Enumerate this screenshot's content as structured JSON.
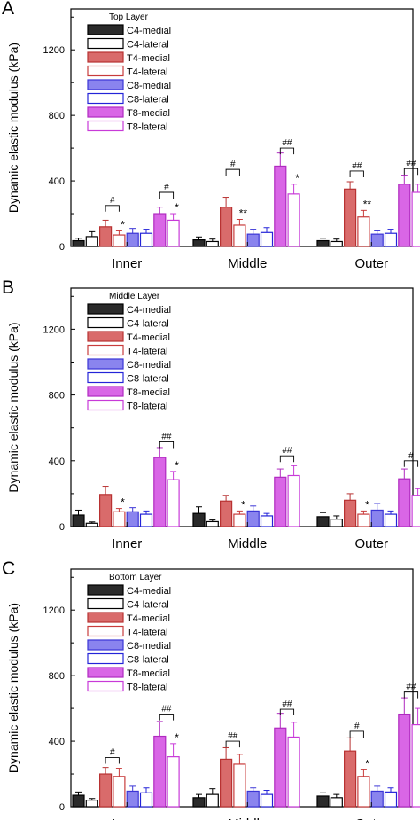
{
  "colors": {
    "C4-medial": {
      "fill": "#2a2a2a",
      "stroke": "#000000"
    },
    "C4-lateral": {
      "fill": "#ffffff",
      "stroke": "#000000"
    },
    "T4-medial": {
      "fill": "#d96b6b",
      "stroke": "#b83232"
    },
    "T4-lateral": {
      "fill": "#ffffff",
      "stroke": "#c83c3c"
    },
    "C8-medial": {
      "fill": "#8a84ee",
      "stroke": "#3b35d6"
    },
    "C8-lateral": {
      "fill": "#ffffff",
      "stroke": "#2424d8"
    },
    "T8-medial": {
      "fill": "#d966e6",
      "stroke": "#b02ac0"
    },
    "T8-lateral": {
      "fill": "#ffffff",
      "stroke": "#c83ad8"
    }
  },
  "chart_data": [
    {
      "panel": "A",
      "type": "bar",
      "legend_title": "Top Layer",
      "legend_placement": "top-left",
      "ylabel": "Dynamic elastic modulus (kPa)",
      "ylim": [
        0,
        1450
      ],
      "yticks": [
        0,
        400,
        800,
        1200
      ],
      "categories": [
        "Inner",
        "Middle",
        "Outer"
      ],
      "series": [
        {
          "name": "C4-medial",
          "values": [
            35,
            40,
            35
          ],
          "errors": [
            15,
            18,
            15
          ]
        },
        {
          "name": "C4-lateral",
          "values": [
            60,
            30,
            30
          ],
          "errors": [
            30,
            15,
            15
          ]
        },
        {
          "name": "T4-medial",
          "values": [
            120,
            240,
            350
          ],
          "errors": [
            40,
            60,
            45
          ]
        },
        {
          "name": "T4-lateral",
          "values": [
            70,
            130,
            180
          ],
          "errors": [
            25,
            35,
            40
          ]
        },
        {
          "name": "C8-medial",
          "values": [
            80,
            75,
            75
          ],
          "errors": [
            30,
            30,
            20
          ]
        },
        {
          "name": "C8-lateral",
          "values": [
            80,
            85,
            80
          ],
          "errors": [
            25,
            30,
            25
          ]
        },
        {
          "name": "T8-medial",
          "values": [
            200,
            490,
            380
          ],
          "errors": [
            40,
            80,
            55
          ]
        },
        {
          "name": "T8-lateral",
          "values": [
            160,
            320,
            330
          ],
          "errors": [
            40,
            60,
            50
          ]
        }
      ],
      "stars": [
        {
          "category": "Inner",
          "series": "T4-lateral",
          "text": "*"
        },
        {
          "category": "Inner",
          "series": "T8-lateral",
          "text": "*"
        },
        {
          "category": "Middle",
          "series": "T4-lateral",
          "text": "**"
        },
        {
          "category": "Middle",
          "series": "T8-lateral",
          "text": "*"
        },
        {
          "category": "Outer",
          "series": "T4-lateral",
          "text": "**"
        }
      ],
      "brackets": [
        {
          "category": "Inner",
          "from": "T4-medial",
          "to": "T4-lateral",
          "level": 250,
          "text": "#"
        },
        {
          "category": "Inner",
          "from": "T8-medial",
          "to": "T8-lateral",
          "level": 330,
          "text": "#"
        },
        {
          "category": "Middle",
          "from": "T4-medial",
          "to": "T4-lateral",
          "level": 470,
          "text": "#"
        },
        {
          "category": "Middle",
          "from": "T8-medial",
          "to": "T8-lateral",
          "level": 600,
          "text": "##"
        },
        {
          "category": "Outer",
          "from": "T4-medial",
          "to": "T4-lateral",
          "level": 460,
          "text": "##"
        },
        {
          "category": "Outer",
          "from": "T8-medial",
          "to": "T8-lateral",
          "level": 475,
          "text": "##"
        }
      ]
    },
    {
      "panel": "B",
      "type": "bar",
      "legend_title": "Middle Layer",
      "legend_placement": "top-left",
      "ylabel": "Dynamic elastic modulus (kPa)",
      "ylim": [
        0,
        1450
      ],
      "yticks": [
        0,
        400,
        800,
        1200
      ],
      "categories": [
        "Inner",
        "Middle",
        "Outer"
      ],
      "series": [
        {
          "name": "C4-medial",
          "values": [
            70,
            80,
            60
          ],
          "errors": [
            30,
            40,
            25
          ]
        },
        {
          "name": "C4-lateral",
          "values": [
            20,
            30,
            45
          ],
          "errors": [
            8,
            10,
            20
          ]
        },
        {
          "name": "T4-medial",
          "values": [
            195,
            155,
            160
          ],
          "errors": [
            50,
            35,
            40
          ]
        },
        {
          "name": "T4-lateral",
          "values": [
            90,
            75,
            75
          ],
          "errors": [
            20,
            20,
            20
          ]
        },
        {
          "name": "C8-medial",
          "values": [
            90,
            95,
            100
          ],
          "errors": [
            25,
            30,
            40
          ]
        },
        {
          "name": "C8-lateral",
          "values": [
            75,
            65,
            75
          ],
          "errors": [
            20,
            15,
            20
          ]
        },
        {
          "name": "T8-medial",
          "values": [
            420,
            300,
            290
          ],
          "errors": [
            60,
            50,
            60
          ]
        },
        {
          "name": "T8-lateral",
          "values": [
            285,
            310,
            190
          ],
          "errors": [
            50,
            60,
            40
          ]
        }
      ],
      "stars": [
        {
          "category": "Inner",
          "series": "T4-lateral",
          "text": "*"
        },
        {
          "category": "Inner",
          "series": "T8-lateral",
          "text": "*"
        },
        {
          "category": "Middle",
          "series": "T4-lateral",
          "text": "*"
        },
        {
          "category": "Outer",
          "series": "T4-lateral",
          "text": "*"
        },
        {
          "category": "Outer",
          "series": "T8-lateral",
          "text": "*"
        }
      ],
      "brackets": [
        {
          "category": "Inner",
          "from": "T8-medial",
          "to": "T8-lateral",
          "level": 515,
          "text": "##"
        },
        {
          "category": "Middle",
          "from": "T8-medial",
          "to": "T8-lateral",
          "level": 430,
          "text": "##"
        },
        {
          "category": "Outer",
          "from": "T8-medial",
          "to": "T8-lateral",
          "level": 400,
          "text": "#"
        }
      ]
    },
    {
      "panel": "C",
      "type": "bar",
      "legend_title": "Bottom Layer",
      "legend_placement": "top-left",
      "ylabel": "Dynamic elastic modulus (kPa)",
      "ylim": [
        0,
        1450
      ],
      "yticks": [
        0,
        400,
        800,
        1200
      ],
      "categories": [
        "Inner",
        "Middle",
        "Outer"
      ],
      "series": [
        {
          "name": "C4-medial",
          "values": [
            70,
            55,
            65
          ],
          "errors": [
            20,
            20,
            20
          ]
        },
        {
          "name": "C4-lateral",
          "values": [
            40,
            75,
            55
          ],
          "errors": [
            10,
            35,
            20
          ]
        },
        {
          "name": "T4-medial",
          "values": [
            200,
            290,
            340
          ],
          "errors": [
            40,
            70,
            80
          ]
        },
        {
          "name": "T4-lateral",
          "values": [
            185,
            260,
            185
          ],
          "errors": [
            50,
            60,
            40
          ]
        },
        {
          "name": "C8-medial",
          "values": [
            95,
            95,
            95
          ],
          "errors": [
            30,
            20,
            30
          ]
        },
        {
          "name": "C8-lateral",
          "values": [
            85,
            75,
            90
          ],
          "errors": [
            30,
            25,
            25
          ]
        },
        {
          "name": "T8-medial",
          "values": [
            430,
            480,
            565
          ],
          "errors": [
            90,
            90,
            100
          ]
        },
        {
          "name": "T8-lateral",
          "values": [
            305,
            425,
            500
          ],
          "errors": [
            80,
            90,
            100
          ]
        }
      ],
      "stars": [
        {
          "category": "Inner",
          "series": "T8-lateral",
          "text": "*"
        },
        {
          "category": "Outer",
          "series": "T4-lateral",
          "text": "*"
        }
      ],
      "brackets": [
        {
          "category": "Inner",
          "from": "T4-medial",
          "to": "T4-lateral",
          "level": 300,
          "text": "#"
        },
        {
          "category": "Inner",
          "from": "T8-medial",
          "to": "T8-lateral",
          "level": 565,
          "text": "##"
        },
        {
          "category": "Middle",
          "from": "T4-medial",
          "to": "T4-lateral",
          "level": 400,
          "text": "##"
        },
        {
          "category": "Middle",
          "from": "T8-medial",
          "to": "T8-lateral",
          "level": 595,
          "text": "##"
        },
        {
          "category": "Outer",
          "from": "T4-medial",
          "to": "T4-lateral",
          "level": 460,
          "text": "#"
        },
        {
          "category": "Outer",
          "from": "T8-medial",
          "to": "T8-lateral",
          "level": 700,
          "text": "##"
        }
      ]
    }
  ]
}
